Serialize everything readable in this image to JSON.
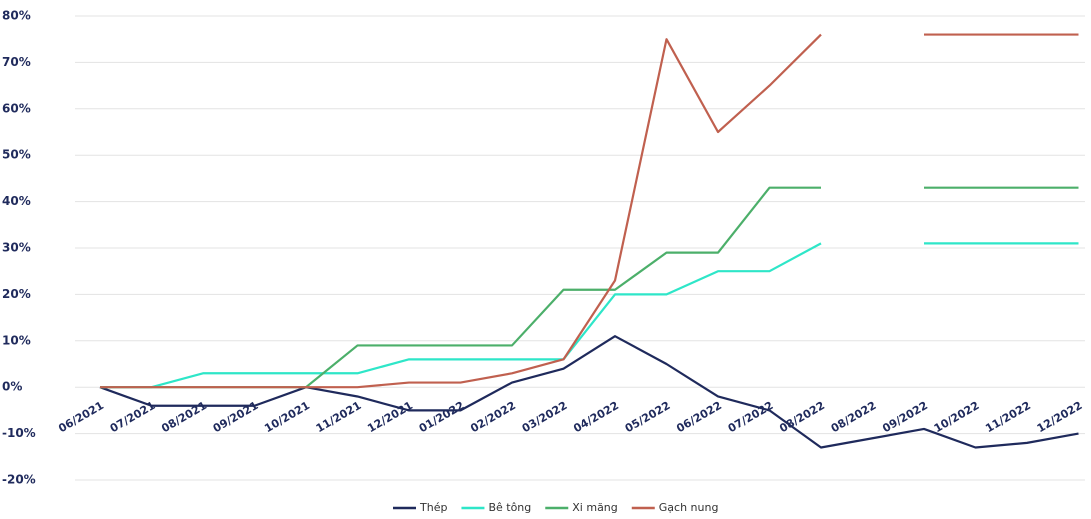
{
  "chart_data": {
    "type": "line",
    "categories": [
      "06/2021",
      "07/2021",
      "08/2021",
      "09/2021",
      "10/2021",
      "11/2021",
      "12/2021",
      "01/2022",
      "02/2022",
      "03/2022",
      "04/2022",
      "05/2022",
      "06/2022",
      "07/2022",
      "08/2022",
      "08/2022",
      "09/2022",
      "10/2022",
      "11/2022",
      "12/2022"
    ],
    "series": [
      {
        "name": "Thép",
        "color": "#1f2a5c",
        "values": [
          0,
          -4,
          -4,
          -4,
          0,
          -2,
          -5,
          -5,
          1,
          4,
          11,
          5,
          -2,
          -5,
          -13,
          -11,
          -9,
          -13,
          -12,
          -10
        ]
      },
      {
        "name": "Bê tông",
        "color": "#2ee6c8",
        "values": [
          0,
          0,
          3,
          3,
          3,
          3,
          6,
          6,
          6,
          6,
          20,
          20,
          25,
          25,
          31,
          null,
          31,
          31,
          31,
          31
        ]
      },
      {
        "name": "Xi măng",
        "color": "#4caf6a",
        "values": [
          0,
          0,
          0,
          0,
          0,
          9,
          9,
          9,
          9,
          21,
          21,
          29,
          29,
          43,
          43,
          null,
          43,
          43,
          43,
          43
        ]
      },
      {
        "name": "Gạch nung",
        "color": "#c0604f",
        "values": [
          0,
          0,
          0,
          0,
          0,
          0,
          1,
          1,
          3,
          6,
          23,
          75,
          55,
          65,
          76,
          null,
          76,
          76,
          76,
          76
        ]
      }
    ],
    "ylim": [
      -20,
      80
    ],
    "yticks": [
      {
        "value": -20,
        "label": "-20%"
      },
      {
        "value": -10,
        "label": "-10%"
      },
      {
        "value": 0,
        "label": "0%"
      },
      {
        "value": 10,
        "label": "10%"
      },
      {
        "value": 20,
        "label": "20%"
      },
      {
        "value": 30,
        "label": "30%"
      },
      {
        "value": 40,
        "label": "40%"
      },
      {
        "value": 50,
        "label": "50%"
      },
      {
        "value": 60,
        "label": "60%"
      },
      {
        "value": 70,
        "label": "70%"
      },
      {
        "value": 80,
        "label": "80%"
      }
    ],
    "grid": true,
    "legend": "bottom"
  }
}
